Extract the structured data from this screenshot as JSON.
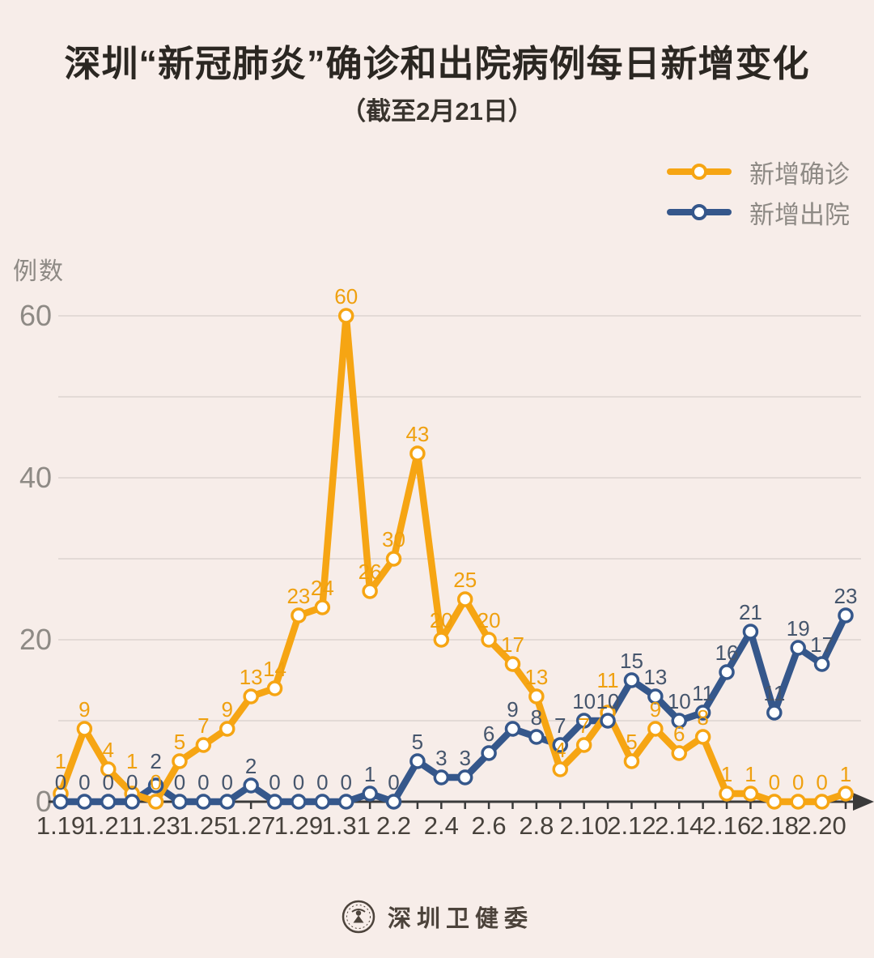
{
  "colors": {
    "background": "#f7ede9",
    "confirmed": "#f6a513",
    "discharged": "#35578b",
    "confirmed_label": "#efa00f",
    "discharged_label": "#45556c",
    "axis": "#3a3a3a",
    "grid": "#e3dad6",
    "muted_text": "#8e8a85",
    "x_label_text": "#46413b",
    "footer_text": "#4c433b"
  },
  "chart_data": {
    "type": "line",
    "title": "深圳“新冠肺炎”确诊和出院病例每日新增变化",
    "subtitle": "（截至2月21日）",
    "ylabel": "例数",
    "ylim": [
      0,
      60
    ],
    "yticks": [
      0,
      20,
      40,
      60
    ],
    "grid": "horizontal gridlines every 10 units",
    "legend_position": "top-right",
    "x_label_every": 2,
    "x": [
      "1.19",
      "1.20",
      "1.21",
      "1.22",
      "1.23",
      "1.24",
      "1.25",
      "1.26",
      "1.27",
      "1.28",
      "1.29",
      "1.30",
      "1.31",
      "2.1",
      "2.2",
      "2.3",
      "2.4",
      "2.5",
      "2.6",
      "2.7",
      "2.8",
      "2.9",
      "2.10",
      "2.11",
      "2.12",
      "2.13",
      "2.14",
      "2.15",
      "2.16",
      "2.17",
      "2.18",
      "2.19",
      "2.20",
      "2.21"
    ],
    "series": [
      {
        "name": "新增确诊",
        "color": "#f6a513",
        "values": [
          1,
          9,
          4,
          1,
          0,
          5,
          7,
          9,
          13,
          14,
          23,
          24,
          60,
          26,
          30,
          43,
          20,
          25,
          20,
          17,
          13,
          4,
          7,
          11,
          5,
          9,
          6,
          8,
          1,
          1,
          0,
          0,
          0,
          1
        ]
      },
      {
        "name": "新增出院",
        "color": "#35578b",
        "values": [
          0,
          0,
          0,
          0,
          2,
          0,
          0,
          0,
          2,
          0,
          0,
          0,
          0,
          1,
          0,
          5,
          3,
          3,
          6,
          9,
          8,
          7,
          10,
          10,
          15,
          13,
          10,
          11,
          16,
          21,
          11,
          19,
          17,
          23
        ]
      }
    ]
  },
  "footer": {
    "brand": "深圳卫健委",
    "logo": "shenzhen-health-commission-seal-icon"
  }
}
